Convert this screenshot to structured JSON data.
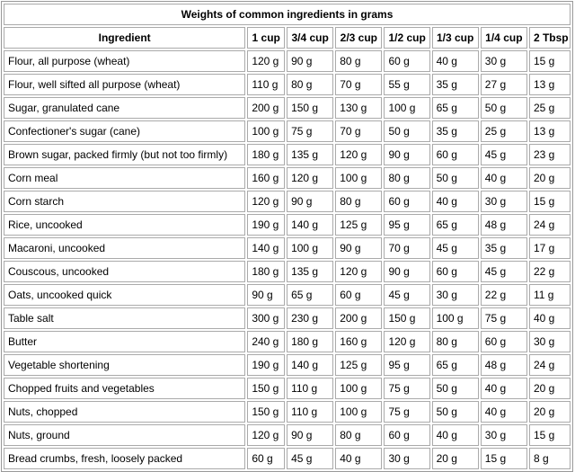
{
  "table": {
    "title": "Weights of common ingredients in grams",
    "header": [
      "Ingredient",
      "1 cup",
      "3/4 cup",
      "2/3 cup",
      "1/2 cup",
      "1/3 cup",
      "1/4 cup",
      "2 Tbsp"
    ],
    "rows": [
      [
        "Flour, all purpose (wheat)",
        "120 g",
        "90 g",
        "80 g",
        "60 g",
        "40 g",
        "30 g",
        "15 g"
      ],
      [
        "Flour, well sifted all purpose (wheat)",
        "110 g",
        "80 g",
        "70 g",
        "55 g",
        "35 g",
        "27 g",
        "13 g"
      ],
      [
        "Sugar, granulated cane",
        "200 g",
        "150 g",
        "130 g",
        "100 g",
        "65 g",
        "50 g",
        "25 g"
      ],
      [
        "Confectioner's sugar (cane)",
        "100 g",
        "75 g",
        "70 g",
        "50 g",
        "35 g",
        "25 g",
        "13 g"
      ],
      [
        "Brown sugar, packed firmly (but not too firmly)",
        "180 g",
        "135 g",
        "120 g",
        "90 g",
        "60 g",
        "45 g",
        "23 g"
      ],
      [
        "Corn meal",
        "160 g",
        "120 g",
        "100 g",
        "80 g",
        "50 g",
        "40 g",
        "20 g"
      ],
      [
        "Corn starch",
        "120 g",
        "90 g",
        "80 g",
        "60 g",
        "40 g",
        "30 g",
        "15 g"
      ],
      [
        "Rice, uncooked",
        "190 g",
        "140 g",
        "125 g",
        "95 g",
        "65 g",
        "48 g",
        "24 g"
      ],
      [
        "Macaroni, uncooked",
        "140 g",
        "100 g",
        "90 g",
        "70 g",
        "45 g",
        "35 g",
        "17 g"
      ],
      [
        "Couscous, uncooked",
        "180 g",
        "135 g",
        "120 g",
        "90 g",
        "60 g",
        "45 g",
        "22 g"
      ],
      [
        "Oats, uncooked quick",
        "90 g",
        "65 g",
        "60 g",
        "45 g",
        "30 g",
        "22 g",
        "11 g"
      ],
      [
        "Table salt",
        "300 g",
        "230 g",
        "200 g",
        "150 g",
        "100 g",
        "75 g",
        "40 g"
      ],
      [
        "Butter",
        "240 g",
        "180 g",
        "160 g",
        "120 g",
        "80 g",
        "60 g",
        "30 g"
      ],
      [
        "Vegetable shortening",
        "190 g",
        "140 g",
        "125 g",
        "95 g",
        "65 g",
        "48 g",
        "24 g"
      ],
      [
        "Chopped fruits and vegetables",
        "150 g",
        "110 g",
        "100 g",
        "75 g",
        "50 g",
        "40 g",
        "20 g"
      ],
      [
        "Nuts, chopped",
        "150 g",
        "110 g",
        "100 g",
        "75 g",
        "50 g",
        "40 g",
        "20 g"
      ],
      [
        "Nuts, ground",
        "120 g",
        "90 g",
        "80 g",
        "60 g",
        "40 g",
        "30 g",
        "15 g"
      ],
      [
        "Bread crumbs, fresh, loosely packed",
        "60 g",
        "45 g",
        "40 g",
        "30 g",
        "20 g",
        "15 g",
        "8 g"
      ]
    ]
  }
}
